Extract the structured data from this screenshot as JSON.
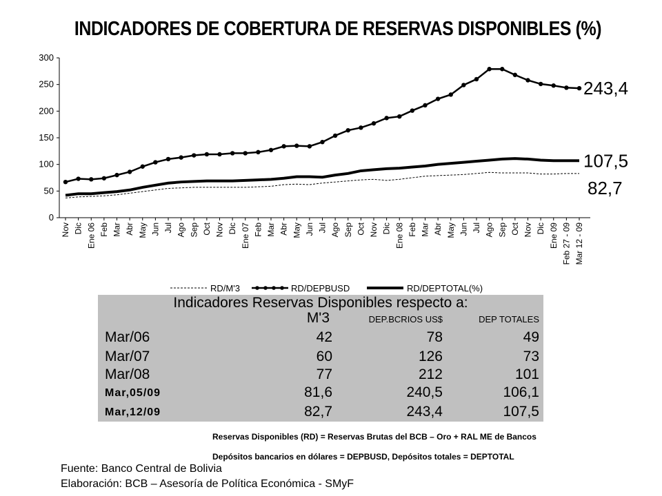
{
  "title": "INDICADORES DE COBERTURA DE RESERVAS DISPONIBLES (%)",
  "chart_data": {
    "type": "line",
    "categories": [
      "Nov",
      "Dic",
      "Ene 06",
      "Feb",
      "Mar",
      "Abr",
      "May",
      "Jun",
      "Jul",
      "Ago",
      "Sep",
      "Oct",
      "Nov",
      "Dic",
      "Ene 07",
      "Feb",
      "Mar",
      "Abr",
      "May",
      "Jun",
      "Jul",
      "Ago",
      "Sep",
      "Oct",
      "Nov",
      "Dic",
      "Ene 08",
      "Feb",
      "Mar",
      "Abr",
      "May",
      "Jun",
      "Jul",
      "Ago",
      "Sep",
      "Oct",
      "Nov",
      "Dic",
      "Ene 09",
      "Feb 27 - 09",
      "Mar 12 - 09"
    ],
    "ylim": [
      0,
      300
    ],
    "yticks": [
      "0",
      "50",
      "100",
      "150",
      "200",
      "250",
      "300"
    ],
    "grid": false,
    "legend_position": "bottom",
    "series": [
      {
        "name": "RD/M'3",
        "style": "dashed",
        "values": [
          37,
          39,
          40,
          41,
          43,
          46,
          49,
          52,
          55,
          56,
          57,
          57,
          57,
          57,
          57,
          58,
          59,
          62,
          63,
          62,
          65,
          67,
          69,
          71,
          72,
          70,
          72,
          75,
          78,
          79,
          80,
          81,
          83,
          85,
          84,
          84,
          84,
          82,
          82,
          83,
          83
        ]
      },
      {
        "name": "RD/DEPBUSD",
        "style": "markers",
        "values": [
          67,
          73,
          72,
          74,
          80,
          86,
          96,
          104,
          110,
          113,
          117,
          119,
          119,
          121,
          121,
          123,
          127,
          134,
          135,
          134,
          142,
          154,
          164,
          169,
          177,
          187,
          190,
          201,
          211,
          223,
          231,
          249,
          260,
          279,
          279,
          268,
          258,
          251,
          248,
          244,
          243
        ]
      },
      {
        "name": "RD/DEPTOTAL(%)",
        "style": "thick",
        "values": [
          42,
          45,
          45,
          47,
          49,
          52,
          57,
          61,
          65,
          67,
          68,
          69,
          69,
          69,
          70,
          71,
          72,
          74,
          77,
          77,
          76,
          80,
          83,
          88,
          90,
          92,
          93,
          95,
          97,
          100,
          102,
          104,
          106,
          108,
          110,
          111,
          110,
          108,
          107,
          107,
          107
        ]
      }
    ],
    "end_labels": [
      "243,4",
      "107,5",
      "82,7"
    ]
  },
  "table": {
    "title": "Indicadores Reservas Disponibles respecto a:",
    "columns": [
      "M'3",
      "DEP.BCRIOS US$",
      "DEP TOTALES"
    ],
    "rows": [
      {
        "label": "Mar/06",
        "values": [
          "42",
          "78",
          "49"
        ]
      },
      {
        "label": "Mar/07",
        "values": [
          "60",
          "126",
          "73"
        ]
      },
      {
        "label": "Mar/08",
        "values": [
          "77",
          "212",
          "101"
        ]
      },
      {
        "label": "Mar,05/09",
        "values": [
          "81,6",
          "240,5",
          "106,1"
        ]
      },
      {
        "label": "Mar,12/09",
        "values": [
          "82,7",
          "243,4",
          "107,5"
        ]
      }
    ]
  },
  "notes": {
    "line1": "Reservas Disponibles (RD) = Reservas Brutas del BCB – Oro + RAL ME de Bancos",
    "line2": "Depósitos bancarios en dólares = DEPBUSD, Depósitos totales = DEPTOTAL"
  },
  "source": {
    "line1": "Fuente: Banco Central de Bolivia",
    "line2": "Elaboración: BCB – Asesoría de Política Económica - SMyF"
  }
}
